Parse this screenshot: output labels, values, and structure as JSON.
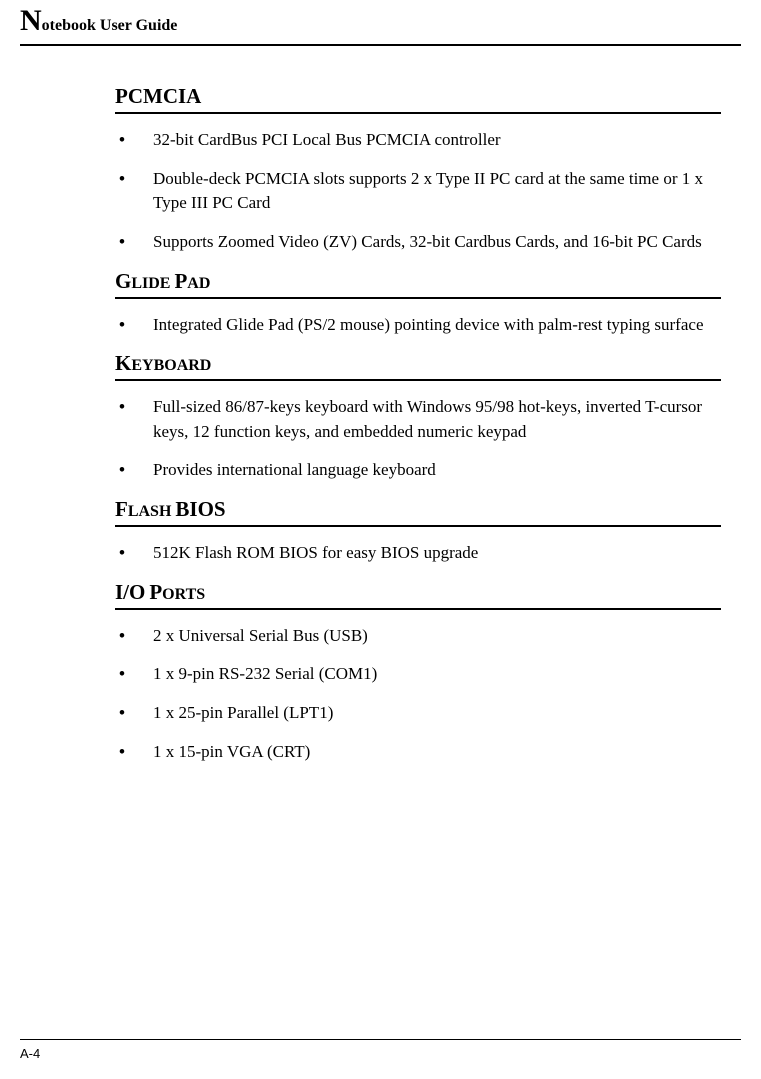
{
  "header": {
    "title_dropcap": "N",
    "title_rest": "otebook User Guide"
  },
  "sections": {
    "pcmcia": {
      "heading": "PCMCIA",
      "items": [
        "32-bit CardBus PCI Local Bus PCMCIA controller",
        "Double-deck PCMCIA slots supports 2 x Type II PC card at the same time or 1 x Type III PC Card",
        "Supports Zoomed Video (ZV) Cards, 32-bit Cardbus Cards, and 16-bit PC Cards"
      ]
    },
    "glidepad": {
      "heading_cap1": "G",
      "heading_rest1": "LIDE",
      "heading_cap2": "P",
      "heading_rest2": "AD",
      "items": [
        "Integrated Glide Pad (PS/2 mouse) pointing device with palm-rest typing surface"
      ]
    },
    "keyboard": {
      "heading_cap1": "K",
      "heading_rest1": "EYBOARD",
      "items": [
        "Full-sized 86/87-keys keyboard with Windows 95/98 hot-keys, inverted T-cursor keys, 12 function keys, and embedded numeric keypad",
        "Provides international language keyboard"
      ]
    },
    "flashbios": {
      "heading_cap1": "F",
      "heading_rest1": "LASH",
      "heading_cap2": "BIOS",
      "items": [
        "512K Flash ROM BIOS for easy BIOS upgrade"
      ]
    },
    "ioports": {
      "heading_cap1": "I/O",
      "heading_cap2": "P",
      "heading_rest2": "ORTS",
      "items": [
        "2 x Universal Serial Bus (USB)",
        "1 x 9-pin RS-232 Serial (COM1)",
        "1 x 25-pin Parallel (LPT1)",
        "1 x 15-pin VGA (CRT)"
      ]
    }
  },
  "footer": {
    "page_number": "A-4"
  },
  "style": {
    "text_color": "#000000",
    "background_color": "#ffffff",
    "rule_color": "#000000",
    "body_font_size": 17,
    "heading_font_size": 21,
    "smallcap_font_size": 16,
    "dropcap_font_size": 30
  }
}
